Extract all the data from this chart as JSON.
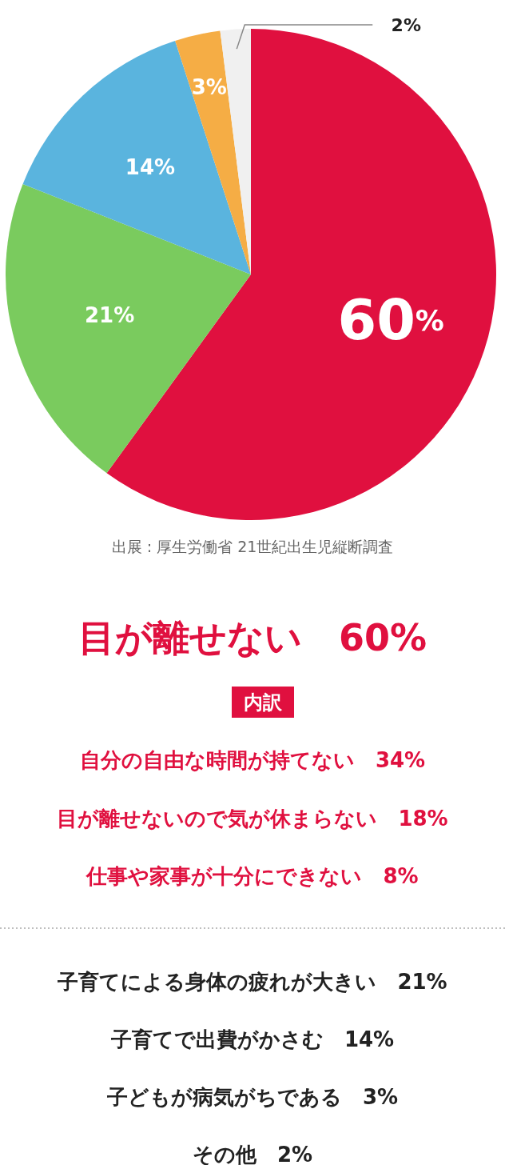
{
  "chart_data": {
    "type": "pie",
    "categories": [
      null,
      null,
      null,
      null,
      null
    ],
    "values": [
      60,
      21,
      14,
      3,
      2
    ],
    "value_labels": [
      "60%",
      "21%",
      "14%",
      "3%",
      "2%"
    ],
    "colors": [
      "#e0103f",
      "#7acb5e",
      "#5ab4de",
      "#f5ad45",
      "#f0f0f0"
    ],
    "annotations": [
      "出展 : 厚生労働省 21世紀出生児縦断調査",
      "目が離せない　60%",
      "内訳",
      "自分の自由な時間が持てない　34%",
      "目が離せないので気が休まらない　18%",
      "仕事や家事が十分にできない　8%",
      "子育てによる身体の疲れが大きい　21%",
      "子育てで出費がかさむ　14%",
      "子どもが病気がちである　3%",
      "その他　2%"
    ]
  }
}
